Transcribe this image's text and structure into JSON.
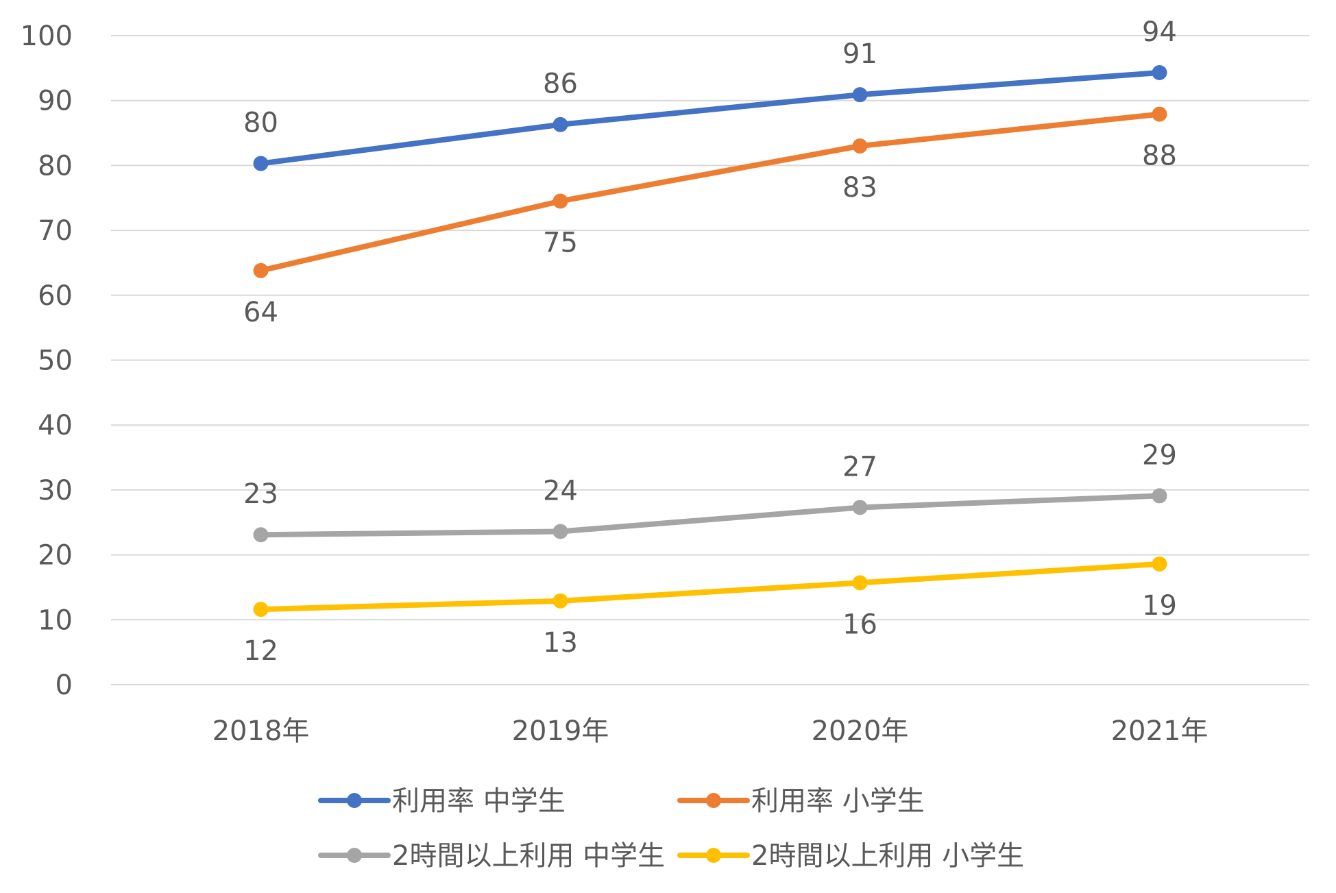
{
  "chart_data": {
    "type": "line",
    "categories": [
      "2018年",
      "2019年",
      "2020年",
      "2021年"
    ],
    "ylim": [
      0,
      100
    ],
    "yticks": [
      0,
      10,
      20,
      30,
      40,
      50,
      60,
      70,
      80,
      90,
      100
    ],
    "grid": true,
    "legend_position": "bottom",
    "title": "",
    "xlabel": "",
    "ylabel": "",
    "series": [
      {
        "name": "利用率 中学生",
        "color": "#4472C4",
        "values": [
          80.3,
          86.3,
          90.9,
          94.3
        ],
        "labels": [
          "80",
          "86",
          "91",
          "94"
        ],
        "label_position": "above"
      },
      {
        "name": "利用率 小学生",
        "color": "#ED7D31",
        "values": [
          63.8,
          74.5,
          83.0,
          87.9
        ],
        "labels": [
          "64",
          "75",
          "83",
          "88"
        ],
        "label_position": "below"
      },
      {
        "name": "2時間以上利用 中学生",
        "color": "#A5A5A5",
        "values": [
          23.1,
          23.6,
          27.3,
          29.1
        ],
        "labels": [
          "23",
          "24",
          "27",
          "29"
        ],
        "label_position": "above"
      },
      {
        "name": "2時間以上利用 小学生",
        "color": "#FFC000",
        "values": [
          11.6,
          12.9,
          15.7,
          18.6
        ],
        "labels": [
          "12",
          "13",
          "16",
          "19"
        ],
        "label_position": "below"
      }
    ]
  }
}
